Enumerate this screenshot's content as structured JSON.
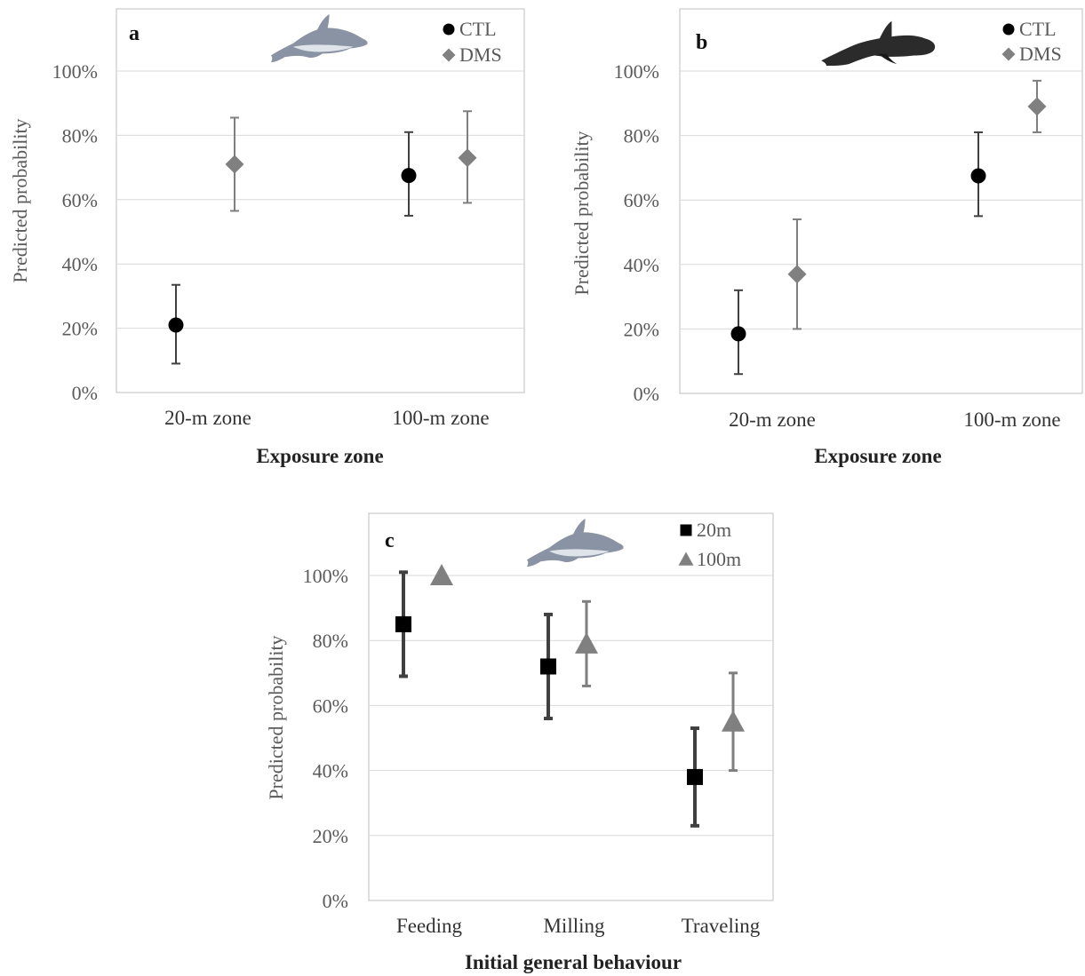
{
  "figure": {
    "panels": [
      {
        "id": "a",
        "letter": "a",
        "animal": "dolphin-icon"
      },
      {
        "id": "b",
        "letter": "b",
        "animal": "pilot-whale-icon"
      },
      {
        "id": "c",
        "letter": "c",
        "animal": "dolphin-icon"
      }
    ]
  },
  "colors": {
    "black": "#000000",
    "gray": "#808080",
    "errorbar_dark": "#404040",
    "errorbar_light": "#7f7f7f",
    "grid": "#d9d9d9",
    "frame": "#bfbfbf",
    "dolphin_body": "#8a93a3",
    "whale_body": "#2b2b2b"
  },
  "chart_data": [
    {
      "panel": "a",
      "type": "scatter",
      "title": "",
      "xlabel": "Exposure zone",
      "ylabel": "Predicted probability",
      "categories": [
        "20-m zone",
        "100-m zone"
      ],
      "ylim": [
        0,
        1.2
      ],
      "yticks": [
        0,
        0.2,
        0.4,
        0.6,
        0.8,
        1.0
      ],
      "ytick_labels": [
        "0%",
        "20%",
        "40%",
        "60%",
        "80%",
        "100%"
      ],
      "grid": true,
      "legend_position": "top-right",
      "series": [
        {
          "name": "CTL",
          "marker": "circle",
          "color": "#000000",
          "values": [
            0.21,
            0.675
          ],
          "lower": [
            0.09,
            0.55
          ],
          "upper": [
            0.335,
            0.81
          ]
        },
        {
          "name": "DMS",
          "marker": "diamond",
          "color": "#808080",
          "values": [
            0.71,
            0.73
          ],
          "lower": [
            0.565,
            0.59
          ],
          "upper": [
            0.855,
            0.875
          ]
        }
      ]
    },
    {
      "panel": "b",
      "type": "scatter",
      "title": "",
      "xlabel": "Exposure zone",
      "ylabel": "Predicted probability",
      "categories": [
        "20-m zone",
        "100-m zone"
      ],
      "ylim": [
        0,
        1.2
      ],
      "yticks": [
        0,
        0.2,
        0.4,
        0.6,
        0.8,
        1.0
      ],
      "ytick_labels": [
        "0%",
        "20%",
        "40%",
        "60%",
        "80%",
        "100%"
      ],
      "grid": true,
      "legend_position": "top-right",
      "series": [
        {
          "name": "CTL",
          "marker": "circle",
          "color": "#000000",
          "values": [
            0.185,
            0.675
          ],
          "lower": [
            0.06,
            0.55
          ],
          "upper": [
            0.32,
            0.81
          ]
        },
        {
          "name": "DMS",
          "marker": "diamond",
          "color": "#808080",
          "values": [
            0.37,
            0.89
          ],
          "lower": [
            0.2,
            0.81
          ],
          "upper": [
            0.54,
            0.97
          ]
        }
      ]
    },
    {
      "panel": "c",
      "type": "scatter",
      "title": "",
      "xlabel": "Initial general behaviour",
      "ylabel": "Predicted probability",
      "categories": [
        "Feeding",
        "Milling",
        "Traveling"
      ],
      "ylim": [
        0,
        1.2
      ],
      "yticks": [
        0,
        0.2,
        0.4,
        0.6,
        0.8,
        1.0
      ],
      "ytick_labels": [
        "0%",
        "20%",
        "40%",
        "60%",
        "80%",
        "100%"
      ],
      "grid": true,
      "legend_position": "top-right",
      "series": [
        {
          "name": "20m",
          "marker": "square",
          "color": "#000000",
          "values": [
            0.85,
            0.72,
            0.38
          ],
          "lower": [
            0.69,
            0.56,
            0.23
          ],
          "upper": [
            1.01,
            0.88,
            0.53
          ]
        },
        {
          "name": "100m",
          "marker": "triangle",
          "color": "#808080",
          "values": [
            1.0,
            0.79,
            0.55
          ],
          "lower": [
            null,
            0.66,
            0.4
          ],
          "upper": [
            null,
            0.92,
            0.7
          ]
        }
      ]
    }
  ]
}
